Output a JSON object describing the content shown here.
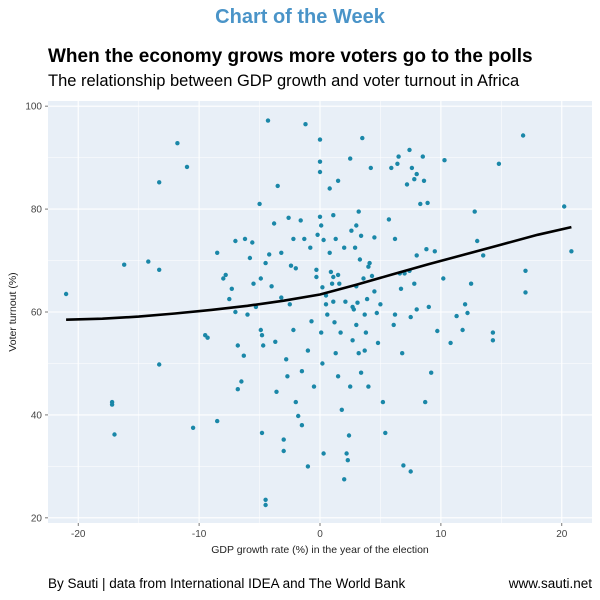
{
  "header": {
    "kicker": "Chart of the Week",
    "title": "When the economy grows more voters go to the polls",
    "subtitle": "The relationship between GDP growth and voter turnout in Africa"
  },
  "footer": {
    "credit": "By Sauti | data from International IDEA and The World Bank",
    "url": "www.sauti.net"
  },
  "colors": {
    "panel": "#e8eff7",
    "grid": "#ffffff",
    "point": "#1a87a8",
    "trend": "#000000"
  },
  "chart_data": {
    "type": "scatter",
    "xlabel": "GDP growth rate (%) in the year of the election",
    "ylabel": "Voter turnout (%)",
    "xlim": [
      -22.5,
      22.5
    ],
    "ylim": [
      19,
      101
    ],
    "xticks": [
      -20,
      -10,
      0,
      10,
      20
    ],
    "yticks": [
      20,
      40,
      60,
      80,
      100
    ],
    "grid": true,
    "points": [
      [
        -21,
        63.5
      ],
      [
        -17.2,
        42.5
      ],
      [
        -17.2,
        42
      ],
      [
        -17,
        36.2
      ],
      [
        -16.2,
        69.2
      ],
      [
        -14.2,
        69.8
      ],
      [
        -13.3,
        85.2
      ],
      [
        -13.3,
        68.2
      ],
      [
        -13.3,
        49.8
      ],
      [
        -11.8,
        92.8
      ],
      [
        -11,
        88.2
      ],
      [
        -10.5,
        37.5
      ],
      [
        -9.5,
        55.5
      ],
      [
        -9.3,
        55
      ],
      [
        -8.5,
        38.8
      ],
      [
        -8.5,
        71.5
      ],
      [
        -8,
        66.5
      ],
      [
        -7.8,
        67.2
      ],
      [
        -7.5,
        62.5
      ],
      [
        -7.3,
        64.5
      ],
      [
        -7,
        60
      ],
      [
        -7,
        73.8
      ],
      [
        -6.8,
        53.5
      ],
      [
        -6.8,
        45
      ],
      [
        -6.5,
        46.5
      ],
      [
        -6.3,
        51.5
      ],
      [
        -6.2,
        74.2
      ],
      [
        -6,
        59.5
      ],
      [
        -5.8,
        70.5
      ],
      [
        -5.6,
        73.5
      ],
      [
        -5.5,
        65.5
      ],
      [
        -5.3,
        61
      ],
      [
        -5,
        81
      ],
      [
        -4.9,
        66.5
      ],
      [
        -4.9,
        56.5
      ],
      [
        -4.8,
        55.5
      ],
      [
        -4.7,
        53.5
      ],
      [
        -4.8,
        36.5
      ],
      [
        -4.5,
        23.5
      ],
      [
        -4.5,
        22.5
      ],
      [
        -4.5,
        69.5
      ],
      [
        -4.3,
        97.2
      ],
      [
        -4.2,
        71.2
      ],
      [
        -4,
        65
      ],
      [
        -3.8,
        77.2
      ],
      [
        -3.7,
        54.2
      ],
      [
        -3.6,
        44.5
      ],
      [
        -3.5,
        84.5
      ],
      [
        -3.2,
        62.8
      ],
      [
        -3.2,
        71.5
      ],
      [
        -3,
        35.2
      ],
      [
        -3,
        33
      ],
      [
        -2.8,
        50.8
      ],
      [
        -2.7,
        47.5
      ],
      [
        -2.6,
        78.3
      ],
      [
        -2.5,
        61.5
      ],
      [
        -2.4,
        69
      ],
      [
        -2.2,
        74.2
      ],
      [
        -2.2,
        56.5
      ],
      [
        -2,
        68.5
      ],
      [
        -2,
        42.5
      ],
      [
        -1.8,
        39.8
      ],
      [
        -1.6,
        77.8
      ],
      [
        -1.5,
        48.5
      ],
      [
        -1.5,
        38
      ],
      [
        -1.3,
        74.2
      ],
      [
        -1.2,
        96.5
      ],
      [
        -1,
        52.5
      ],
      [
        -1,
        30
      ],
      [
        -0.8,
        72.5
      ],
      [
        -0.7,
        58.2
      ],
      [
        -0.5,
        45.5
      ],
      [
        -0.3,
        66.8
      ],
      [
        -0.3,
        68.2
      ],
      [
        -0.2,
        75
      ],
      [
        0,
        93.5
      ],
      [
        0,
        89.2
      ],
      [
        0,
        87.2
      ],
      [
        0,
        78.5
      ],
      [
        0.1,
        76.8
      ],
      [
        0.1,
        56
      ],
      [
        0.2,
        64.8
      ],
      [
        0.2,
        50
      ],
      [
        0.3,
        74
      ],
      [
        0.3,
        32.5
      ],
      [
        0.5,
        63.2
      ],
      [
        0.5,
        61.5
      ],
      [
        0.6,
        59.5
      ],
      [
        0.8,
        84
      ],
      [
        0.8,
        71.5
      ],
      [
        0.9,
        67.8
      ],
      [
        1,
        65.5
      ],
      [
        1.1,
        78.8
      ],
      [
        1.1,
        66.8
      ],
      [
        1.1,
        62
      ],
      [
        1.2,
        58
      ],
      [
        1.3,
        74.2
      ],
      [
        1.3,
        52
      ],
      [
        1.5,
        85.5
      ],
      [
        1.5,
        67.2
      ],
      [
        1.5,
        47.5
      ],
      [
        1.6,
        65.5
      ],
      [
        1.7,
        56
      ],
      [
        1.8,
        41
      ],
      [
        2,
        72.5
      ],
      [
        2,
        27.5
      ],
      [
        2.1,
        62
      ],
      [
        2.2,
        32.5
      ],
      [
        2.3,
        31.2
      ],
      [
        2.4,
        36
      ],
      [
        2.5,
        89.8
      ],
      [
        2.5,
        45.5
      ],
      [
        2.6,
        75.8
      ],
      [
        2.7,
        61
      ],
      [
        2.7,
        54.5
      ],
      [
        2.8,
        60.5
      ],
      [
        2.9,
        72.5
      ],
      [
        3,
        76.8
      ],
      [
        3,
        65
      ],
      [
        3,
        57.5
      ],
      [
        3.1,
        61.8
      ],
      [
        3.2,
        52
      ],
      [
        3.2,
        79.5
      ],
      [
        3.3,
        70.2
      ],
      [
        3.4,
        48.2
      ],
      [
        3.4,
        74.8
      ],
      [
        3.5,
        93.8
      ],
      [
        3.6,
        66.5
      ],
      [
        3.7,
        59.5
      ],
      [
        3.7,
        52.5
      ],
      [
        3.8,
        56
      ],
      [
        3.9,
        62.5
      ],
      [
        4,
        68.8
      ],
      [
        4,
        45.5
      ],
      [
        4.1,
        69.5
      ],
      [
        4.2,
        88
      ],
      [
        4.3,
        67
      ],
      [
        4.5,
        64
      ],
      [
        4.5,
        74.5
      ],
      [
        4.7,
        59.8
      ],
      [
        4.8,
        54
      ],
      [
        5,
        61.5
      ],
      [
        5.2,
        42.5
      ],
      [
        5.4,
        36.5
      ],
      [
        5.7,
        78
      ],
      [
        5.9,
        88
      ],
      [
        6.1,
        57.5
      ],
      [
        6.2,
        74.2
      ],
      [
        6.2,
        59.5
      ],
      [
        6.4,
        88.8
      ],
      [
        6.5,
        90.2
      ],
      [
        6.6,
        67.5
      ],
      [
        6.7,
        64.5
      ],
      [
        6.8,
        52
      ],
      [
        6.9,
        30.2
      ],
      [
        7,
        67.5
      ],
      [
        7.2,
        84.8
      ],
      [
        7.4,
        91.5
      ],
      [
        7.4,
        68
      ],
      [
        7.5,
        59
      ],
      [
        7.5,
        29
      ],
      [
        7.6,
        88
      ],
      [
        7.8,
        85.8
      ],
      [
        7.8,
        65.5
      ],
      [
        8,
        86.8
      ],
      [
        8,
        60.5
      ],
      [
        8,
        71
      ],
      [
        8.3,
        81
      ],
      [
        8.5,
        90.2
      ],
      [
        8.6,
        85.5
      ],
      [
        8.7,
        42.5
      ],
      [
        8.8,
        72.2
      ],
      [
        8.9,
        81.2
      ],
      [
        9,
        61
      ],
      [
        9.2,
        48.2
      ],
      [
        9.5,
        71.8
      ],
      [
        9.7,
        56.3
      ],
      [
        10.2,
        66.5
      ],
      [
        10.3,
        89.5
      ],
      [
        10.8,
        54
      ],
      [
        11.3,
        59.2
      ],
      [
        11.8,
        56.5
      ],
      [
        12,
        61.5
      ],
      [
        12.2,
        59.8
      ],
      [
        12.5,
        65.5
      ],
      [
        12.8,
        79.5
      ],
      [
        13,
        73.8
      ],
      [
        13.5,
        71
      ],
      [
        14.3,
        56
      ],
      [
        14.3,
        54.5
      ],
      [
        14.8,
        88.8
      ],
      [
        16.8,
        94.3
      ],
      [
        17,
        68
      ],
      [
        17,
        63.8
      ],
      [
        20.2,
        80.5
      ],
      [
        20.8,
        71.8
      ]
    ],
    "trend": [
      [
        -21,
        58.5
      ],
      [
        -18,
        58.7
      ],
      [
        -15,
        59.1
      ],
      [
        -12,
        59.7
      ],
      [
        -9,
        60.4
      ],
      [
        -6,
        61.2
      ],
      [
        -3,
        62.2
      ],
      [
        0,
        63.4
      ],
      [
        3,
        65.3
      ],
      [
        6,
        67.3
      ],
      [
        9,
        69.3
      ],
      [
        12,
        71.2
      ],
      [
        15,
        73.1
      ],
      [
        18,
        75
      ],
      [
        20.8,
        76.5
      ]
    ]
  }
}
